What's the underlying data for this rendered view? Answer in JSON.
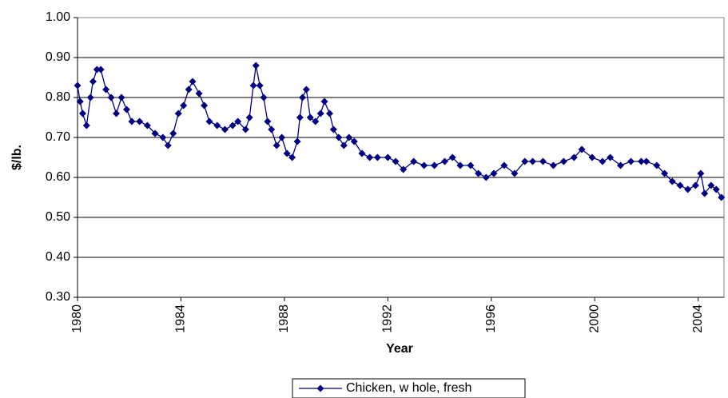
{
  "chart_data": {
    "type": "line",
    "y_label": "$/lb.",
    "x_label": "Year",
    "x": [
      1980.0,
      1980.1,
      1980.2,
      1980.35,
      1980.5,
      1980.6,
      1980.75,
      1980.9,
      1981.1,
      1981.3,
      1981.5,
      1981.7,
      1981.9,
      1982.1,
      1982.4,
      1982.7,
      1983.0,
      1983.3,
      1983.5,
      1983.7,
      1983.9,
      1984.1,
      1984.3,
      1984.45,
      1984.7,
      1984.9,
      1985.1,
      1985.4,
      1985.7,
      1986.0,
      1986.2,
      1986.5,
      1986.65,
      1986.8,
      1986.9,
      1987.05,
      1987.2,
      1987.35,
      1987.5,
      1987.7,
      1987.9,
      1988.1,
      1988.3,
      1988.5,
      1988.6,
      1988.7,
      1988.85,
      1989.0,
      1989.2,
      1989.4,
      1989.55,
      1989.75,
      1989.9,
      1990.1,
      1990.3,
      1990.5,
      1990.7,
      1991.0,
      1991.3,
      1991.6,
      1992.0,
      1992.3,
      1992.6,
      1993.0,
      1993.4,
      1993.8,
      1994.2,
      1994.5,
      1994.8,
      1995.2,
      1995.5,
      1995.8,
      1996.1,
      1996.5,
      1996.9,
      1997.3,
      1997.6,
      1998.0,
      1998.4,
      1998.8,
      1999.2,
      1999.5,
      1999.9,
      2000.3,
      2000.6,
      2001.0,
      2001.4,
      2001.8,
      2002.0,
      2002.4,
      2002.7,
      2003.0,
      2003.3,
      2003.6,
      2003.9,
      2004.1,
      2004.25,
      2004.5,
      2004.7,
      2004.9
    ],
    "series": [
      {
        "name": "Chicken, w hole, fresh",
        "color": "#000080",
        "values": [
          0.83,
          0.79,
          0.76,
          0.73,
          0.8,
          0.84,
          0.87,
          0.87,
          0.82,
          0.8,
          0.76,
          0.8,
          0.77,
          0.74,
          0.74,
          0.73,
          0.71,
          0.7,
          0.68,
          0.71,
          0.76,
          0.78,
          0.82,
          0.84,
          0.81,
          0.78,
          0.74,
          0.73,
          0.72,
          0.73,
          0.74,
          0.72,
          0.75,
          0.83,
          0.88,
          0.83,
          0.8,
          0.74,
          0.72,
          0.68,
          0.7,
          0.66,
          0.65,
          0.69,
          0.75,
          0.8,
          0.82,
          0.75,
          0.74,
          0.76,
          0.79,
          0.76,
          0.72,
          0.7,
          0.68,
          0.7,
          0.69,
          0.66,
          0.65,
          0.65,
          0.65,
          0.64,
          0.62,
          0.64,
          0.63,
          0.63,
          0.64,
          0.65,
          0.63,
          0.63,
          0.61,
          0.6,
          0.61,
          0.63,
          0.61,
          0.64,
          0.64,
          0.64,
          0.63,
          0.64,
          0.65,
          0.67,
          0.65,
          0.64,
          0.65,
          0.63,
          0.64,
          0.64,
          0.64,
          0.63,
          0.61,
          0.59,
          0.58,
          0.57,
          0.58,
          0.61,
          0.56,
          0.58,
          0.57,
          0.55
        ]
      }
    ],
    "xlim": [
      1980,
      2005
    ],
    "xticks": [
      1980,
      1984,
      1988,
      1992,
      1996,
      2000,
      2004
    ],
    "ylim": [
      0.3,
      1.0
    ],
    "yticks": [
      {
        "value": 0.3,
        "label": "0.30"
      },
      {
        "value": 0.4,
        "label": "0.40"
      },
      {
        "value": 0.5,
        "label": "0.50"
      },
      {
        "value": 0.6,
        "label": "0.60"
      },
      {
        "value": 0.7,
        "label": "0.70"
      },
      {
        "value": 0.8,
        "label": "0.80"
      },
      {
        "value": 0.9,
        "label": "0.90"
      },
      {
        "value": 1.0,
        "label": "1.00"
      }
    ],
    "grid": true,
    "legend": "bottom"
  }
}
